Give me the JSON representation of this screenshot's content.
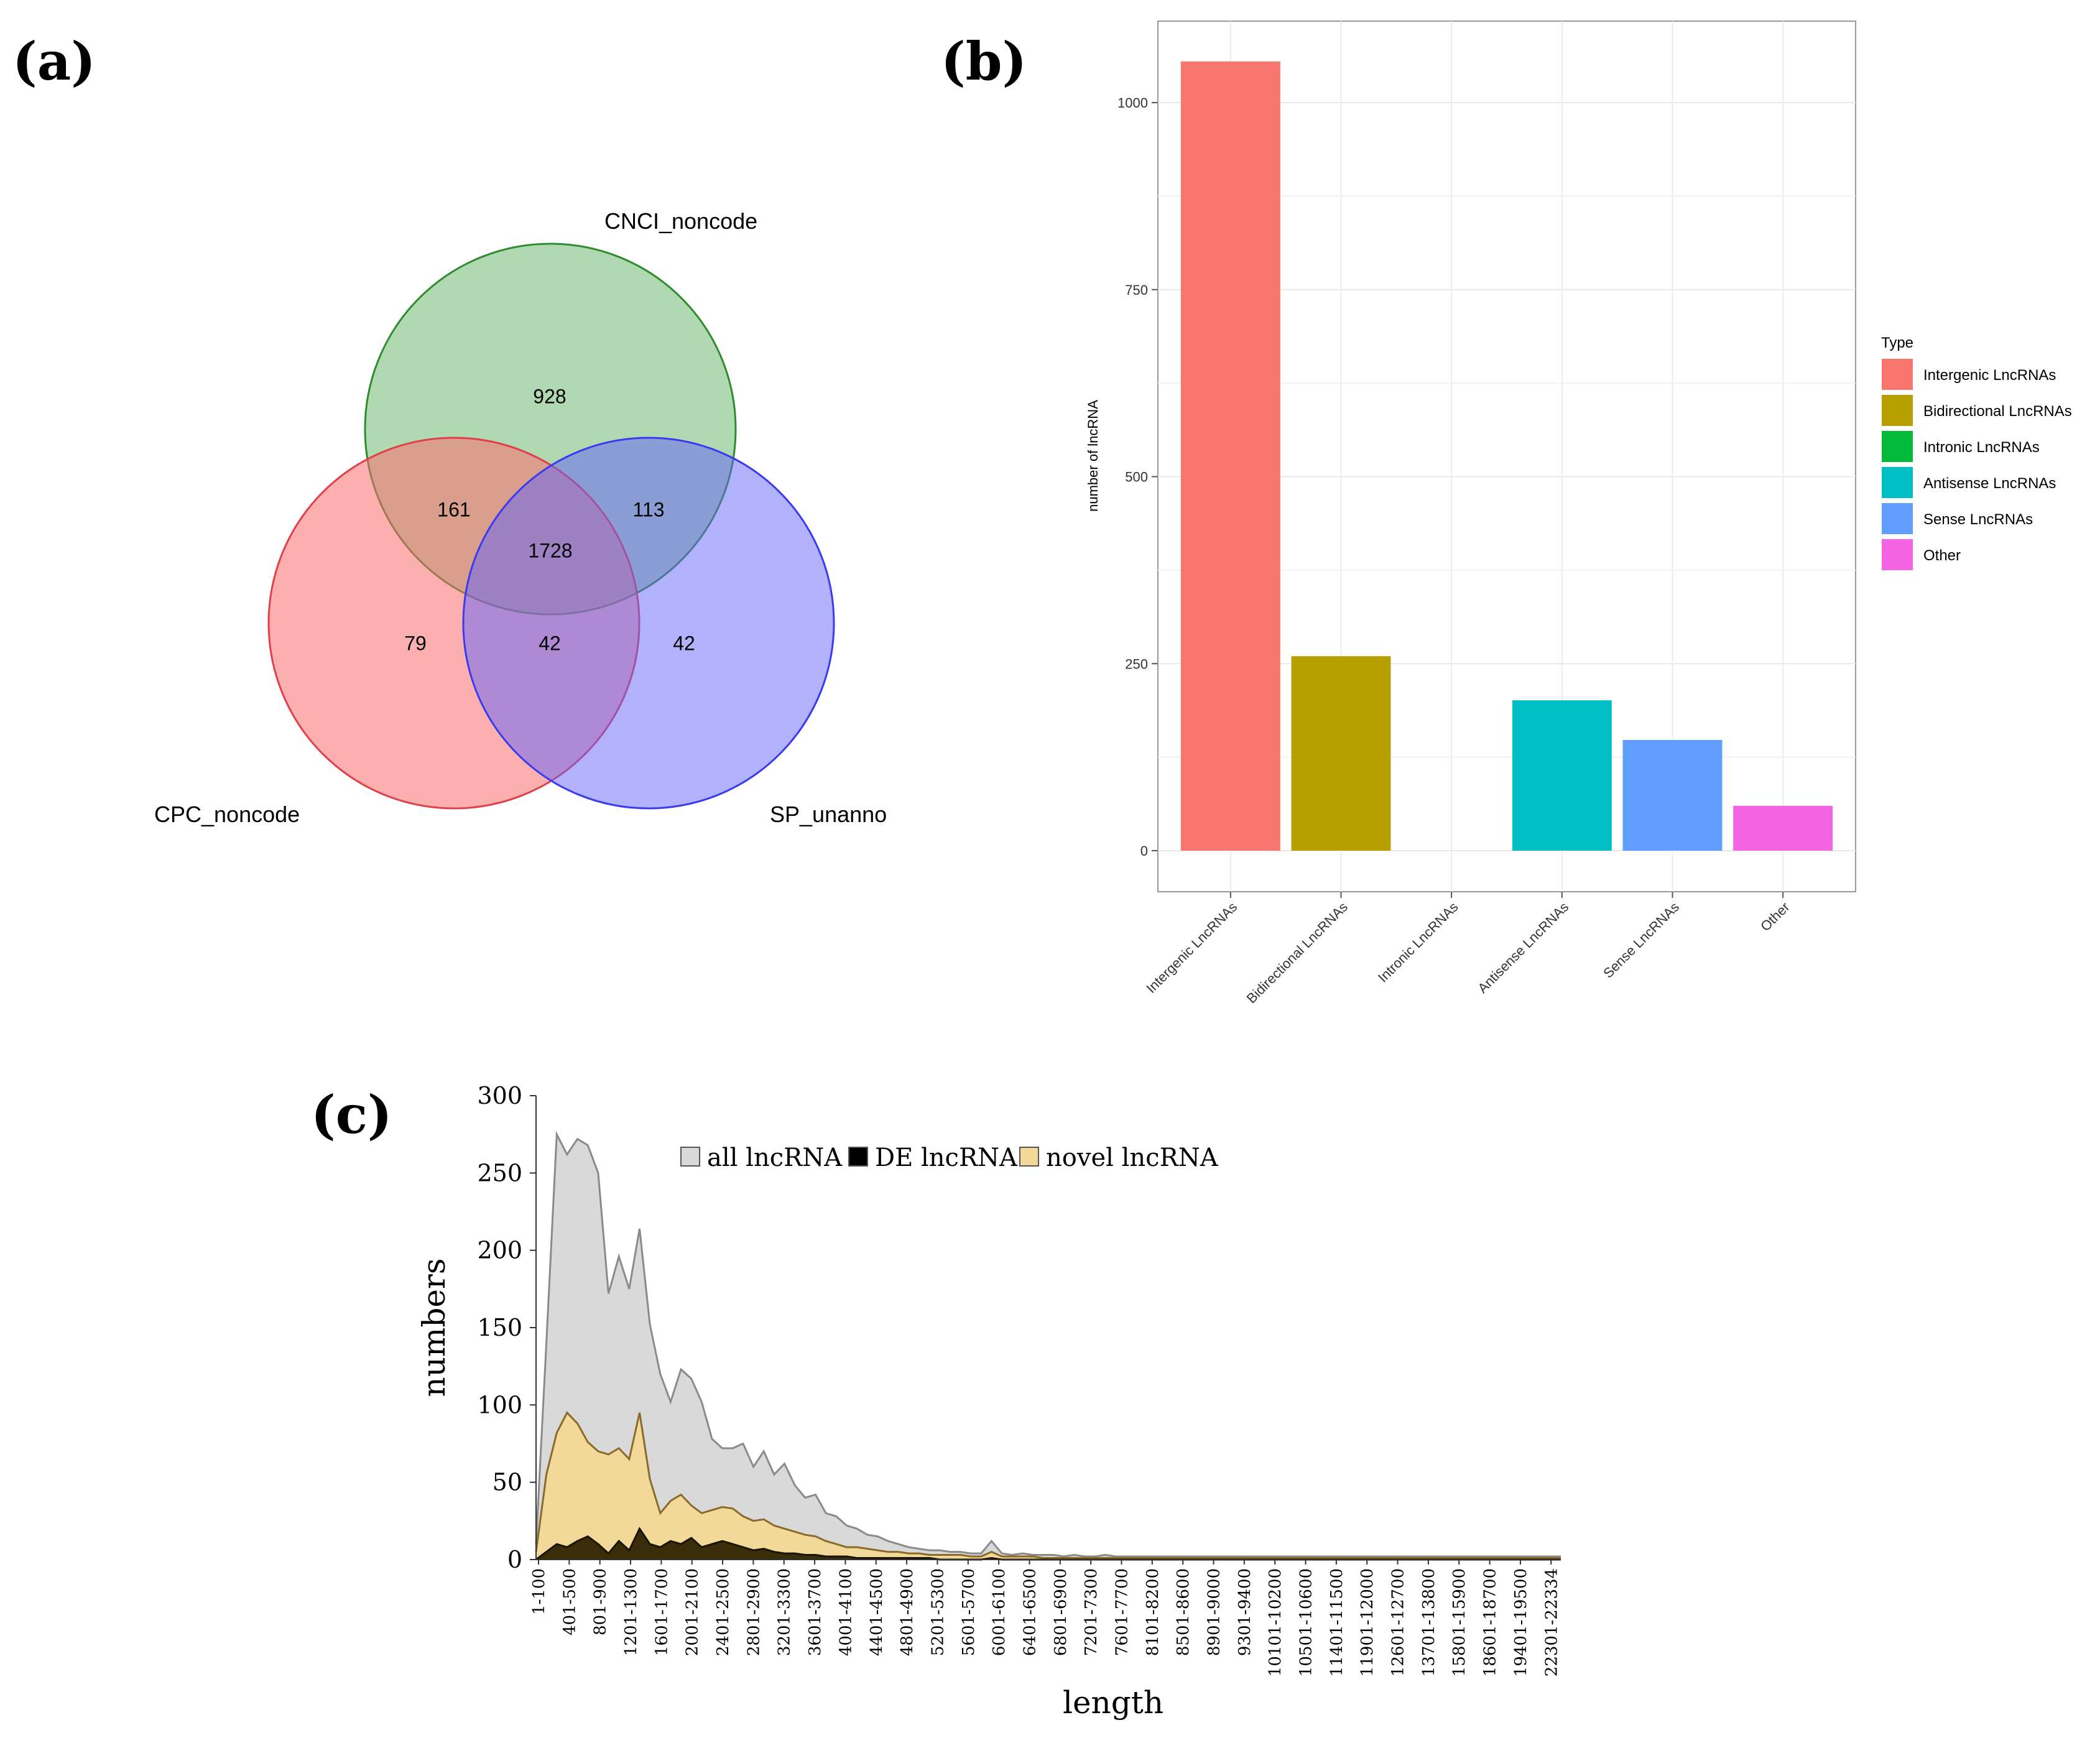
{
  "panels": {
    "a": "(a)",
    "b": "(b)",
    "c": "(c)"
  },
  "chart_data": [
    {
      "panel": "(a)",
      "type": "venn",
      "sets": [
        "CNCI_noncode",
        "CPC_noncode",
        "SP_unanno"
      ],
      "set_colors": [
        "#2e8b2e",
        "#e0404a",
        "#3a3aee"
      ],
      "regions": {
        "cnci_only": "928",
        "cnci_cpc": "161",
        "cnci_sp": "113",
        "all_three": "1728",
        "cpc_only": "79",
        "cpc_sp": "42",
        "sp_only": "42"
      }
    },
    {
      "panel": "(b)",
      "type": "bar",
      "ylabel": "number of lncRNA",
      "xlabel": "",
      "ylim": [
        0,
        1110
      ],
      "yticks": [
        0,
        250,
        500,
        750,
        1000
      ],
      "categories": [
        "Intergenic LncRNAs",
        "Bidirectional LncRNAs",
        "Intronic LncRNAs",
        "Antisense LncRNAs",
        "Sense LncRNAs",
        "Other"
      ],
      "values": [
        1055,
        260,
        0,
        201,
        148,
        60
      ],
      "colors": [
        "#f8766d",
        "#b79f00",
        "#00ba38",
        "#00bfc4",
        "#619cff",
        "#f564e3"
      ],
      "legend_title": "Type",
      "legend_position": "right"
    },
    {
      "panel": "(c)",
      "type": "area",
      "xlabel": "length",
      "ylabel": "numbers",
      "ylim": [
        0,
        300
      ],
      "yticks": [
        0,
        50,
        100,
        150,
        200,
        250,
        300
      ],
      "legend": [
        "all lncRNA",
        "DE lncRNA",
        "novel lncRNA"
      ],
      "legend_position": "top",
      "x_tick_labels": [
        "1-100",
        "401-500",
        "801-900",
        "1201-1300",
        "1601-1700",
        "2001-2100",
        "2401-2500",
        "2801-2900",
        "3201-3300",
        "3601-3700",
        "4001-4100",
        "4401-4500",
        "4801-4900",
        "5201-5300",
        "5601-5700",
        "6001-6100",
        "6401-6500",
        "6801-6900",
        "7201-7300",
        "7601-7700",
        "8101-8200",
        "8501-8600",
        "8901-9000",
        "9301-9400",
        "10101-10200",
        "10501-10600",
        "11401-11500",
        "11901-12000",
        "12601-12700",
        "13701-13800",
        "15801-15900",
        "18601-18700",
        "19401-19500",
        "22301-22334"
      ],
      "series": [
        {
          "name": "all lncRNA",
          "color": "#d9d9d9",
          "values": [
            10,
            140,
            275,
            262,
            272,
            268,
            250,
            172,
            196,
            175,
            214,
            152,
            120,
            102,
            123,
            117,
            102,
            78,
            72,
            72,
            75,
            60,
            70,
            55,
            62,
            48,
            40,
            42,
            30,
            28,
            22,
            20,
            16,
            15,
            12,
            10,
            8,
            7,
            6,
            6,
            5,
            5,
            4,
            4,
            12,
            4,
            3,
            4,
            3,
            3,
            3,
            2,
            3,
            2,
            2,
            3,
            2,
            2,
            2,
            2,
            2,
            2,
            2,
            2,
            2,
            2,
            2,
            2,
            2,
            2,
            2,
            2,
            2,
            2,
            2,
            2,
            2,
            2,
            2,
            2,
            2,
            2,
            2,
            2,
            2,
            2,
            2,
            2,
            2,
            2,
            2,
            2,
            2,
            2,
            2,
            2,
            2,
            2,
            2,
            2
          ]
        },
        {
          "name": "novel lncRNA",
          "color": "#f2d99a",
          "values": [
            5,
            55,
            82,
            95,
            88,
            76,
            70,
            68,
            72,
            65,
            95,
            52,
            30,
            38,
            42,
            35,
            30,
            32,
            34,
            33,
            28,
            25,
            26,
            22,
            20,
            18,
            16,
            15,
            12,
            10,
            8,
            8,
            7,
            6,
            5,
            5,
            4,
            4,
            3,
            3,
            3,
            3,
            2,
            2,
            5,
            2,
            2,
            2,
            2,
            1,
            1,
            1,
            1,
            1,
            1,
            1,
            1,
            1,
            1,
            1,
            1,
            1,
            1,
            1,
            1,
            1,
            1,
            1,
            1,
            1,
            1,
            1,
            1,
            1,
            1,
            1,
            1,
            1,
            1,
            1,
            1,
            1,
            1,
            1,
            1,
            1,
            1,
            1,
            1,
            1,
            1,
            1,
            1,
            1,
            1,
            1,
            1,
            1,
            1,
            1
          ]
        },
        {
          "name": "DE lncRNA",
          "color": "#3a2e0a",
          "values": [
            0,
            5,
            10,
            8,
            12,
            15,
            10,
            4,
            12,
            6,
            20,
            10,
            8,
            12,
            10,
            14,
            8,
            10,
            12,
            10,
            8,
            6,
            7,
            5,
            4,
            4,
            3,
            3,
            2,
            2,
            2,
            1,
            1,
            1,
            1,
            1,
            1,
            1,
            1,
            0,
            0,
            0,
            0,
            0,
            1,
            0,
            0,
            0,
            0,
            0,
            0,
            0,
            0,
            0,
            0,
            0,
            0,
            0,
            0,
            0,
            0,
            0,
            0,
            0,
            0,
            0,
            0,
            0,
            0,
            0,
            0,
            0,
            0,
            0,
            0,
            0,
            0,
            0,
            0,
            0,
            0,
            0,
            0,
            0,
            0,
            0,
            0,
            0,
            0,
            0,
            0,
            0,
            0,
            0,
            0,
            0,
            0,
            0,
            0,
            0
          ]
        }
      ]
    }
  ]
}
